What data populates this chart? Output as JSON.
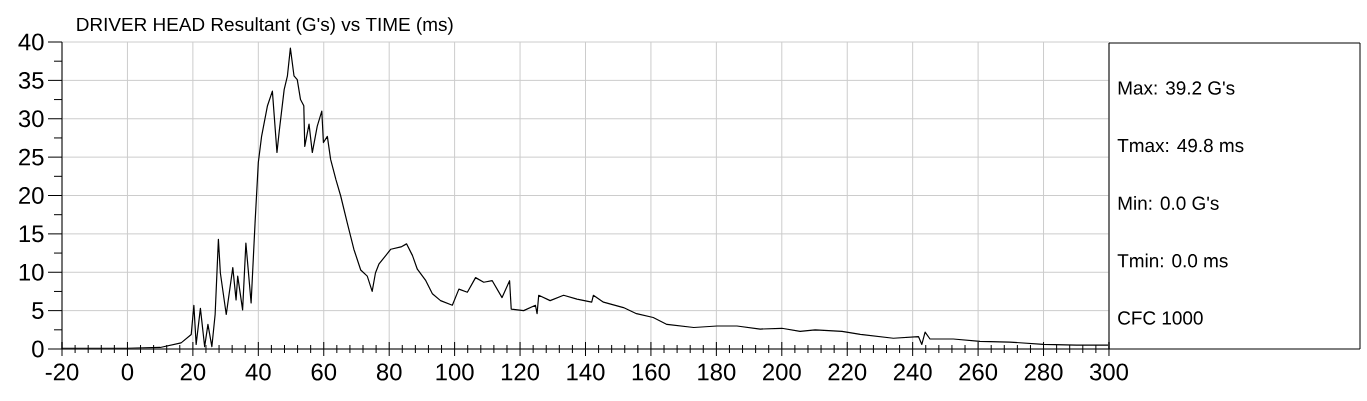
{
  "chart_data": {
    "type": "line",
    "title": "DRIVER HEAD Resultant (G's) vs TIME (ms)",
    "x": [
      -20,
      -10,
      0,
      10,
      16.4,
      19.5,
      20.3,
      21,
      22.3,
      23.6,
      24.6,
      25.8,
      26.8,
      27.8,
      28.4,
      30.2,
      32.2,
      33.2,
      33.7,
      35.2,
      36.2,
      37.8,
      39,
      40,
      41,
      42.8,
      44.3,
      45.7,
      46.4,
      47.9,
      48.9,
      49.8,
      50.9,
      51.9,
      52.9,
      53.9,
      54.2,
      55.5,
      56.5,
      58,
      59.4,
      59.9,
      61.1,
      62.1,
      63.7,
      65.2,
      67.2,
      69.2,
      71.3,
      73.3,
      74.8,
      75.8,
      76.9,
      79,
      80.5,
      83.6,
      85.3,
      87.1,
      88.6,
      91.2,
      93.2,
      95.7,
      99.3,
      101.3,
      103.9,
      106.4,
      108.9,
      111.5,
      114.5,
      116.8,
      117.3,
      121.1,
      124.7,
      125.2,
      125.7,
      129.2,
      133.3,
      137.4,
      141.9,
      142.4,
      145.5,
      151.6,
      155.6,
      160.7,
      164.9,
      173.1,
      180.2,
      186.3,
      193.4,
      200,
      205.6,
      210.2,
      218.4,
      224,
      234.1,
      241.8,
      242.8,
      243.8,
      245.3,
      252.4,
      260.6,
      269.7,
      279.9,
      290.1,
      299.7
    ],
    "series": [
      {
        "color": "#000000",
        "values": [
          0.1,
          0.1,
          0.1,
          0.2,
          0.8,
          1.9,
          5.7,
          0.6,
          5.3,
          0.3,
          3.2,
          0.3,
          4.5,
          14.3,
          9.9,
          4.5,
          10.6,
          6.4,
          9.5,
          5.1,
          13.8,
          6.0,
          16.4,
          24.3,
          27.7,
          31.7,
          33.6,
          25.6,
          28.4,
          33.8,
          35.6,
          39.2,
          35.6,
          35.1,
          32.5,
          31.7,
          26.4,
          29.3,
          25.6,
          29.0,
          31.0,
          26.9,
          27.7,
          24.7,
          22.1,
          19.9,
          16.4,
          13.0,
          10.3,
          9.5,
          7.5,
          9.9,
          11.1,
          12.2,
          13.0,
          13.3,
          13.7,
          12.2,
          10.4,
          8.9,
          7.2,
          6.3,
          5.7,
          7.8,
          7.4,
          9.3,
          8.7,
          8.9,
          6.7,
          8.9,
          5.2,
          5.0,
          5.7,
          4.6,
          7.0,
          6.3,
          7.0,
          6.5,
          6.1,
          7.0,
          6.1,
          5.4,
          4.6,
          4.1,
          3.2,
          2.8,
          3.0,
          3.0,
          2.6,
          2.7,
          2.3,
          2.5,
          2.3,
          1.9,
          1.4,
          1.6,
          0.6,
          2.2,
          1.3,
          1.3,
          1.0,
          0.9,
          0.6,
          0.5,
          0.5
        ]
      }
    ],
    "xlim": [
      -20,
      300
    ],
    "xticks": [
      -20,
      0,
      20,
      40,
      60,
      80,
      100,
      120,
      140,
      160,
      180,
      200,
      220,
      240,
      260,
      280,
      300
    ],
    "ylim": [
      0,
      40
    ],
    "yticks": [
      0,
      5,
      10,
      15,
      20,
      25,
      30,
      35,
      40
    ],
    "grid": true,
    "marker": "none",
    "line_style": "solid",
    "annotations": [
      "Max: 39.2 G's",
      "Tmax: 49.8 ms",
      "Min: 0.0 G's",
      "Tmin: 0.0 ms",
      "CFC 1000"
    ]
  }
}
